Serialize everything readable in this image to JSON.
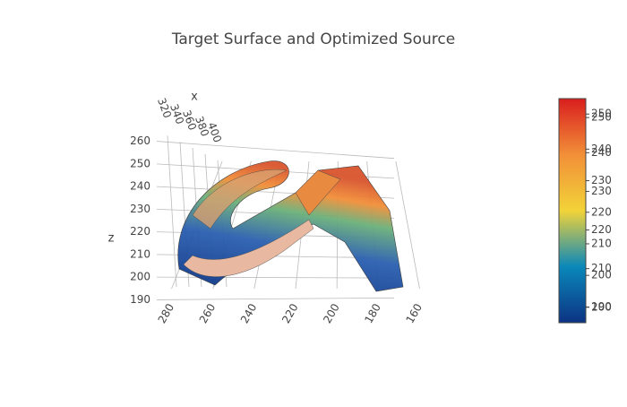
{
  "chart_data": {
    "type": "surface3d",
    "title": "Target Surface and Optimized Source",
    "x_label": "x",
    "z_label": "z",
    "xlim": [
      310,
      410
    ],
    "xticks": [
      320,
      340,
      360,
      380,
      400
    ],
    "ylim": [
      285,
      155
    ],
    "yticks": [
      280,
      260,
      240,
      220,
      200,
      180,
      160
    ],
    "zlim": [
      187,
      263
    ],
    "zticks": [
      190,
      200,
      210,
      220,
      230,
      240,
      250,
      260
    ],
    "colorscale": [
      "#0c3383",
      "#0a88ba",
      "#f2d338",
      "#f28f38",
      "#d91e1e"
    ],
    "colorbars": [
      {
        "lim": [
          196,
          254
        ],
        "ticks": [
          200,
          210,
          220,
          230,
          240,
          250
        ]
      },
      {
        "lim": [
          185,
          256
        ],
        "ticks": [
          190,
          200,
          210,
          220,
          230,
          240,
          250
        ]
      }
    ]
  }
}
